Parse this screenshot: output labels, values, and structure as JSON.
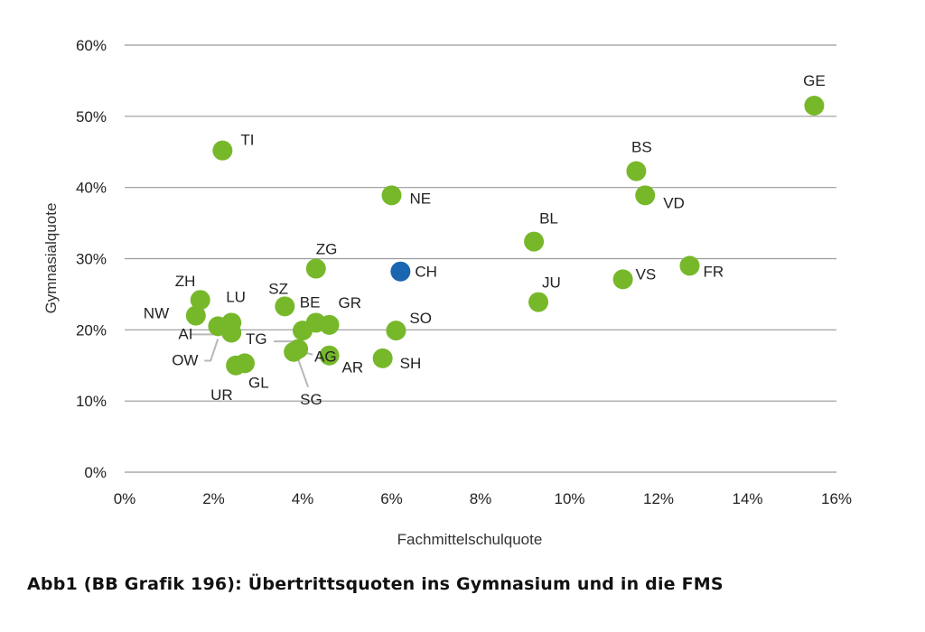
{
  "caption": "Abb1 (BB Grafik 196): Übertrittsquoten ins Gymnasium und in die FMS",
  "chart_data": {
    "type": "scatter",
    "title": "",
    "xlabel": "Fachmittelschulquote",
    "ylabel": "Gymnasialquote",
    "xlim": [
      0,
      16
    ],
    "ylim": [
      0,
      60
    ],
    "xticks": [
      0,
      2,
      4,
      6,
      8,
      10,
      12,
      14,
      16
    ],
    "xtick_labels": [
      "0%",
      "2%",
      "4%",
      "6%",
      "8%",
      "10%",
      "12%",
      "14%",
      "16%"
    ],
    "yticks": [
      0,
      10,
      20,
      30,
      40,
      50,
      60
    ],
    "ytick_labels": [
      "0%",
      "10%",
      "20%",
      "30%",
      "40%",
      "50%",
      "60%"
    ],
    "grid": "horizontal",
    "colors": {
      "canton": "#77B82A",
      "national": "#1A66B0",
      "grid": "#9a9a9a",
      "leader": "#b8b8b8"
    },
    "points": [
      {
        "label": "GE",
        "x": 15.5,
        "y": 51.5,
        "highlight": false
      },
      {
        "label": "TI",
        "x": 2.2,
        "y": 45.2,
        "highlight": false
      },
      {
        "label": "BS",
        "x": 11.5,
        "y": 42.3,
        "highlight": false
      },
      {
        "label": "VD",
        "x": 11.7,
        "y": 38.9,
        "highlight": false
      },
      {
        "label": "NE",
        "x": 6.0,
        "y": 38.9,
        "highlight": false
      },
      {
        "label": "BL",
        "x": 9.2,
        "y": 32.4,
        "highlight": false
      },
      {
        "label": "FR",
        "x": 12.7,
        "y": 29.0,
        "highlight": false
      },
      {
        "label": "ZG",
        "x": 4.3,
        "y": 28.6,
        "highlight": false
      },
      {
        "label": "CH",
        "x": 6.2,
        "y": 28.2,
        "highlight": true
      },
      {
        "label": "VS",
        "x": 11.2,
        "y": 27.1,
        "highlight": false
      },
      {
        "label": "ZH",
        "x": 1.7,
        "y": 24.2,
        "highlight": false
      },
      {
        "label": "JU",
        "x": 9.3,
        "y": 23.9,
        "highlight": false
      },
      {
        "label": "SZ",
        "x": 3.6,
        "y": 23.3,
        "highlight": false
      },
      {
        "label": "NW",
        "x": 1.6,
        "y": 22.0,
        "highlight": false
      },
      {
        "label": "LU",
        "x": 2.4,
        "y": 21.0,
        "highlight": false
      },
      {
        "label": "BE",
        "x": 4.3,
        "y": 21.0,
        "highlight": false
      },
      {
        "label": "GR",
        "x": 4.6,
        "y": 20.7,
        "highlight": false
      },
      {
        "label": "AI",
        "x": 2.1,
        "y": 20.5,
        "highlight": false
      },
      {
        "label": "OW",
        "x": 2.4,
        "y": 19.6,
        "highlight": false
      },
      {
        "label": "SO",
        "x": 6.1,
        "y": 19.9,
        "highlight": false
      },
      {
        "label": "TG",
        "x": 4.0,
        "y": 19.9,
        "highlight": false
      },
      {
        "label": "AG",
        "x": 3.9,
        "y": 17.3,
        "highlight": false
      },
      {
        "label": "SG",
        "x": 3.8,
        "y": 16.9,
        "highlight": false
      },
      {
        "label": "AR",
        "x": 4.6,
        "y": 16.4,
        "highlight": false
      },
      {
        "label": "SH",
        "x": 5.8,
        "y": 16.0,
        "highlight": false
      },
      {
        "label": "GL",
        "x": 2.7,
        "y": 15.3,
        "highlight": false
      },
      {
        "label": "UR",
        "x": 2.5,
        "y": 15.0,
        "highlight": false
      }
    ]
  }
}
